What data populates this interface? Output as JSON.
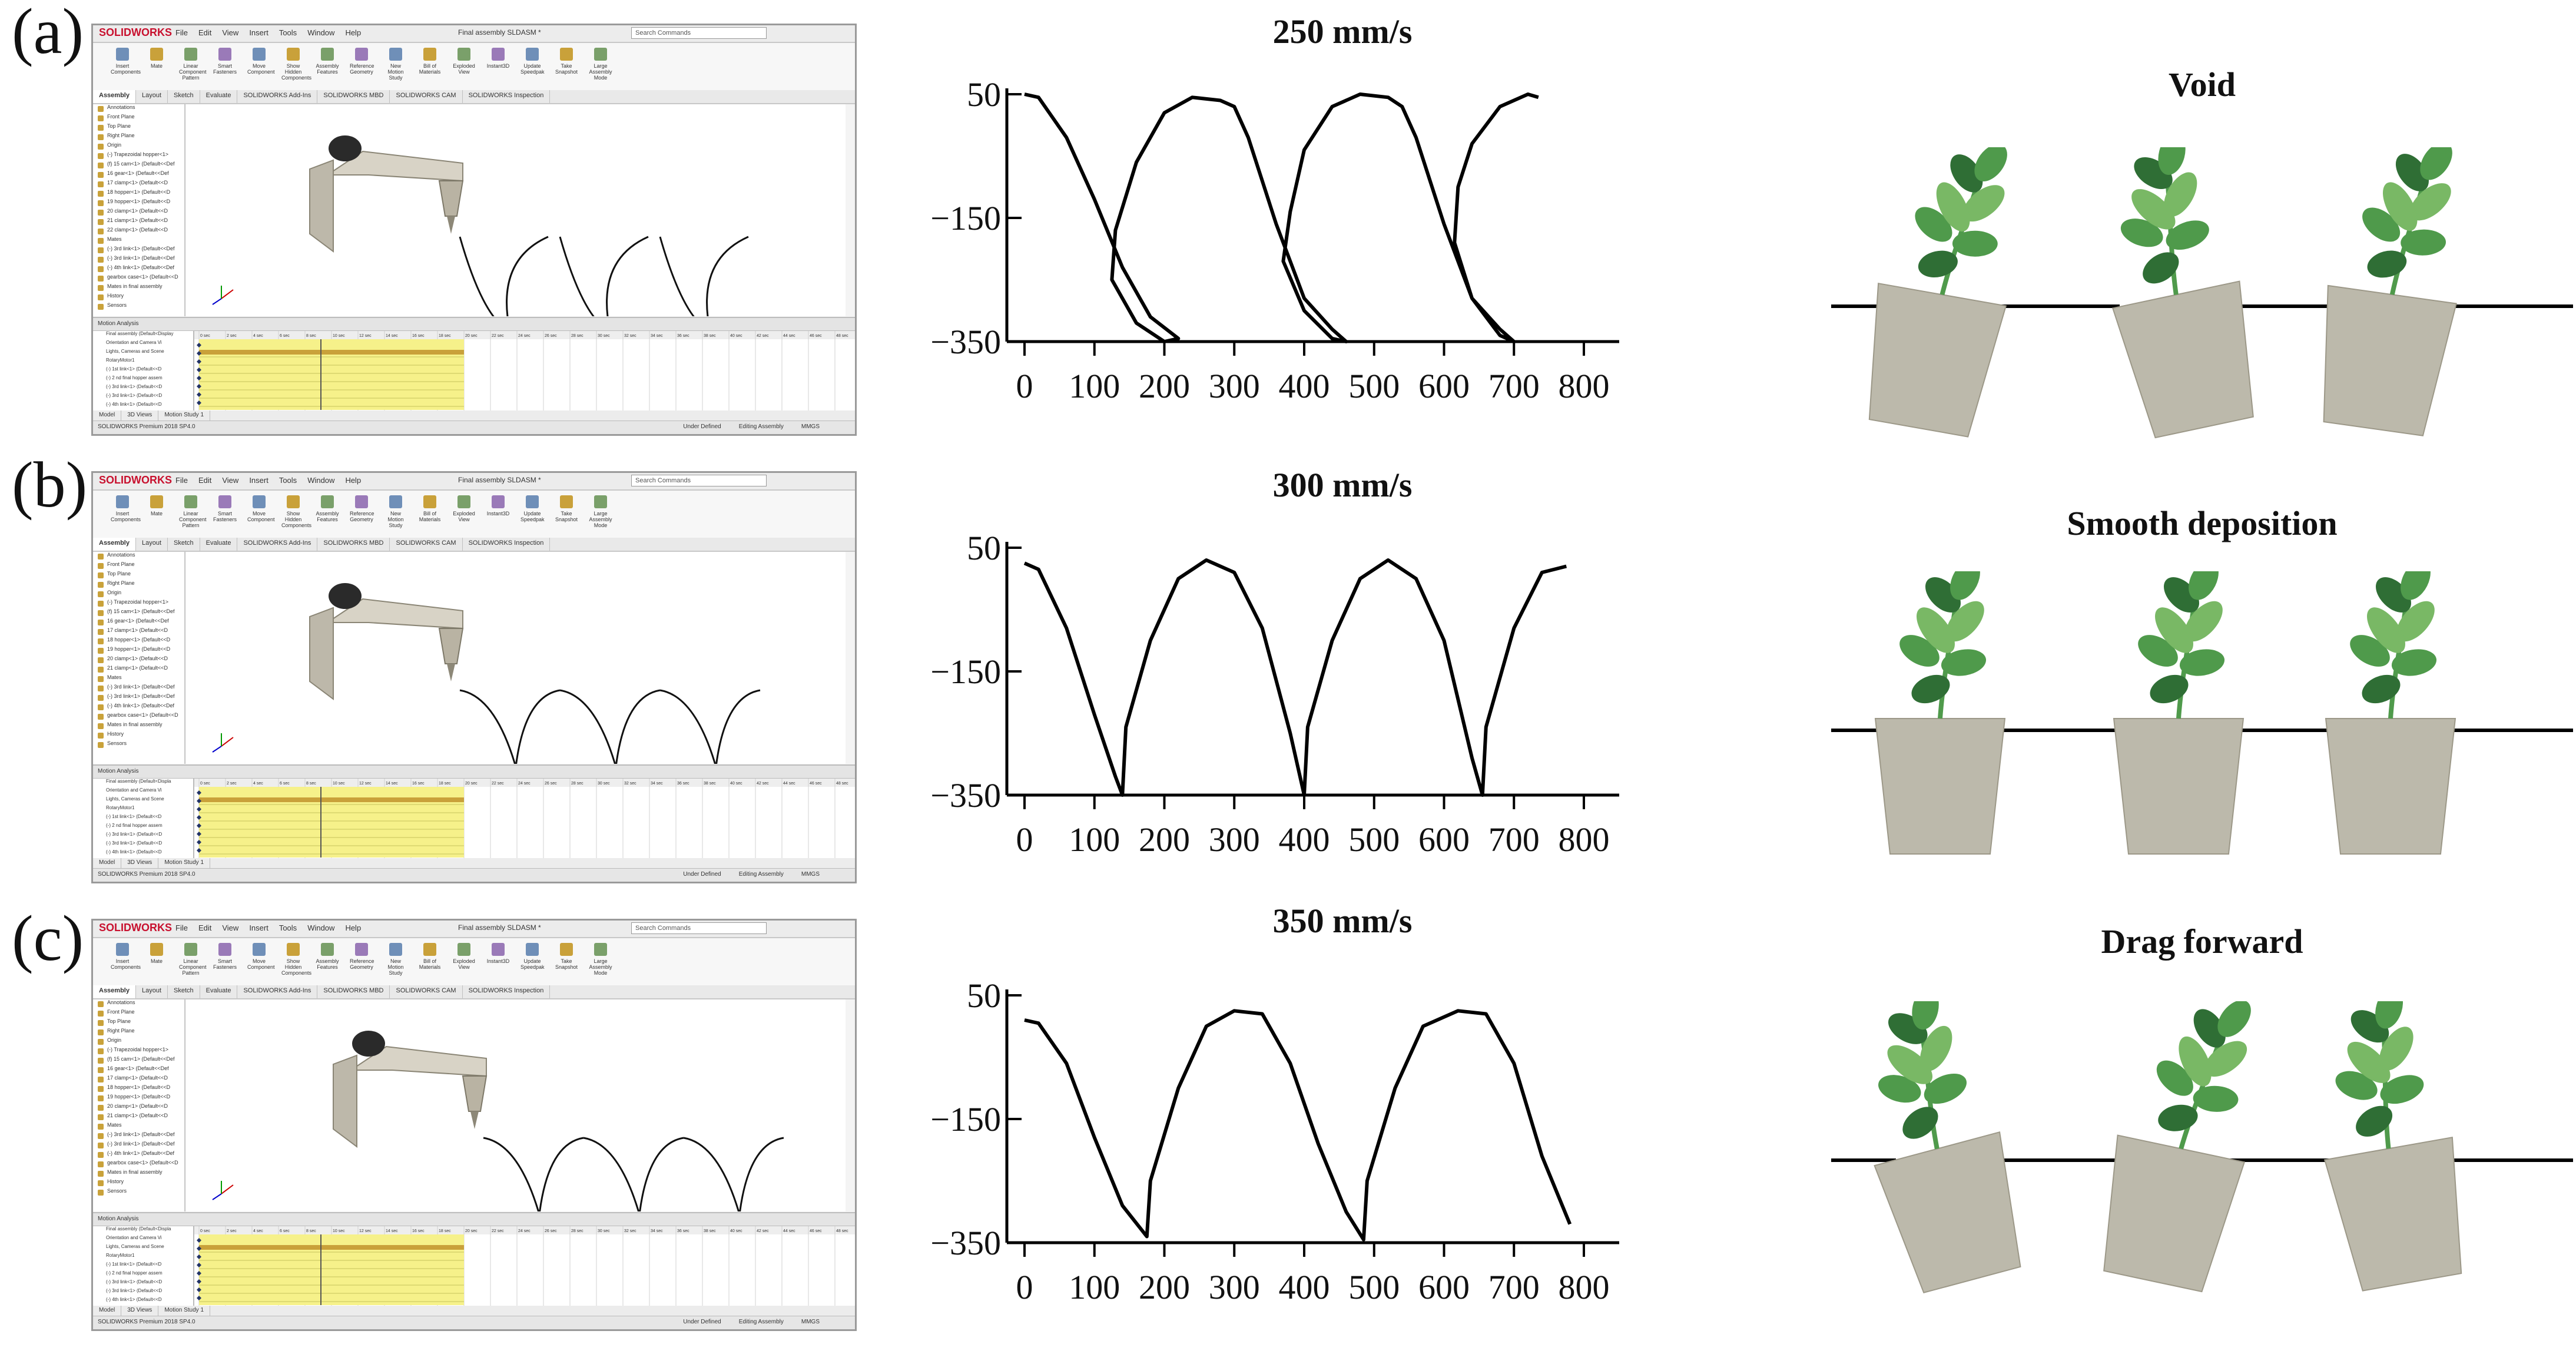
{
  "panels": [
    {
      "label": "(a)",
      "software": {
        "brand": "SOLIDWORKS",
        "menu": [
          "File",
          "Edit",
          "View",
          "Insert",
          "Tools",
          "Window",
          "Help"
        ],
        "doc_title": "Final assembly SLDASM *",
        "search_placeholder": "Search Commands",
        "ribbon": [
          "Insert Components",
          "Mate",
          "Linear Component Pattern",
          "Smart Fasteners",
          "Move Component",
          "Show Hidden Components",
          "Assembly Features",
          "Reference Geometry",
          "New Motion Study",
          "Bill of Materials",
          "Exploded View",
          "Instant3D",
          "Update Speedpak",
          "Take Snapshot",
          "Large Assembly Mode"
        ],
        "tabs": [
          "Assembly",
          "Layout",
          "Sketch",
          "Evaluate",
          "SOLIDWORKS Add-Ins",
          "SOLIDWORKS MBD",
          "SOLIDWORKS CAM",
          "SOLIDWORKS Inspection"
        ],
        "tree": [
          "Annotations",
          "Front Plane",
          "Top Plane",
          "Right Plane",
          "Origin",
          "(-) Trapezoidal hopper<1>",
          "(f) 15 cam<1> (Default<<Def",
          "16 gear<1> (Default<<Def",
          "17 clamp<1> (Default<<D",
          "18 hopper<1> (Default<<D",
          "19 hopper<1> (Default<<D",
          "20 clamp<1> (Default<<D",
          "21 clamp<1> (Default<<D",
          "22 clamp<1> (Default<<D",
          "Mates",
          "(-) 3rd link<1> (Default<<Def",
          "(-) 3rd link<1> (Default<<Def",
          "(-) 4th link<1> (Default<<Def",
          "gearbox case<1> (Default<<D",
          "Mates in final assembly",
          "History",
          "Sensors"
        ],
        "motion_head": "Motion Analysis",
        "motion_tree": [
          "Final assembly (Default<Display",
          "Orientation and Camera Vi",
          "Lights, Cameras and Scene",
          "RotaryMotor1",
          "(-) 1st link<1> (Default<<D",
          "(-) 2 nd final hopper assem",
          "(-) 3rd link<1> (Default<<D",
          "(-) 3rd link<1> (Default<<D",
          "(-) 4th link<1> (Default<<D"
        ],
        "bottom_tabs": [
          "Model",
          "3D Views",
          "Motion Study 1"
        ],
        "status_left": "SOLIDWORKS Premium 2018 SP4.0",
        "status_right": [
          "Under Defined",
          "Editing Assembly",
          "MMGS"
        ],
        "time_ticks": [
          "0 sec",
          "2 sec",
          "4 sec",
          "6 sec",
          "8 sec",
          "10 sec",
          "12 sec",
          "14 sec",
          "16 sec",
          "18 sec",
          "20 sec",
          "22 sec",
          "24 sec",
          "26 sec",
          "28 sec",
          "30 sec",
          "32 sec",
          "34 sec",
          "36 sec",
          "38 sec",
          "40 sec",
          "42 sec",
          "44 sec",
          "46 sec",
          "48 sec"
        ]
      },
      "chart_title": "250 mm/s",
      "plant_title": "Void"
    },
    {
      "label": "(b)",
      "software": {
        "brand": "SOLIDWORKS",
        "menu": [
          "File",
          "Edit",
          "View",
          "Insert",
          "Tools",
          "Window",
          "Help"
        ],
        "doc_title": "Final assembly SLDASM *",
        "search_placeholder": "Search Commands",
        "ribbon": [
          "Insert Components",
          "Mate",
          "Linear Component Pattern",
          "Smart Fasteners",
          "Move Component",
          "Show Hidden Components",
          "Assembly Features",
          "Reference Geometry",
          "New Motion Study",
          "Bill of Materials",
          "Exploded View",
          "Instant3D",
          "Update Speedpak",
          "Take Snapshot",
          "Large Assembly Mode"
        ],
        "tabs": [
          "Assembly",
          "Layout",
          "Sketch",
          "Evaluate",
          "SOLIDWORKS Add-Ins",
          "SOLIDWORKS MBD",
          "SOLIDWORKS CAM",
          "SOLIDWORKS Inspection"
        ],
        "tree": [
          "Annotations",
          "Front Plane",
          "Top Plane",
          "Right Plane",
          "Origin",
          "(-) Trapezoidal hopper<1>",
          "(f) 15 cam<1> (Default<<Def",
          "16 gear<1> (Default<<Def",
          "17 clamp<1> (Default<<D",
          "18 hopper<1> (Default<<D",
          "19 hopper<1> (Default<<D",
          "20 clamp<1> (Default<<D",
          "21 clamp<1> (Default<<D",
          "Mates",
          "(-) 3rd link<1> (Default<<Def",
          "(-) 3rd link<1> (Default<<Def",
          "(-) 4th link<1> (Default<<Def",
          "gearbox case<1> (Default<<D",
          "Mates in final assembly",
          "History",
          "Sensors"
        ],
        "motion_head": "Motion Analysis",
        "motion_tree": [
          "Final assembly (Default<Displa",
          "Orientation and Camera Vi",
          "Lights, Cameras and Scene",
          "RotaryMotor1",
          "(-) 1st link<1> (Default<<D",
          "(-) 2 nd final hopper assem",
          "(-) 3rd link<1> (Default<<D",
          "(-) 3rd link<1> (Default<<D",
          "(-) 4th link<1> (Default<<D"
        ],
        "bottom_tabs": [
          "Model",
          "3D Views",
          "Motion Study 1"
        ],
        "status_left": "SOLIDWORKS Premium 2018 SP4.0",
        "status_right": [
          "Under Defined",
          "Editing Assembly",
          "MMGS"
        ],
        "time_ticks": [
          "0 sec",
          "2 sec",
          "4 sec",
          "6 sec",
          "8 sec",
          "10 sec",
          "12 sec",
          "14 sec",
          "16 sec",
          "18 sec",
          "20 sec",
          "22 sec",
          "24 sec",
          "26 sec",
          "28 sec",
          "30 sec",
          "32 sec",
          "34 sec",
          "36 sec",
          "38 sec",
          "40 sec",
          "42 sec",
          "44 sec",
          "46 sec",
          "48 sec"
        ]
      },
      "chart_title": "300 mm/s",
      "plant_title": "Smooth deposition"
    },
    {
      "label": "(c)",
      "software": {
        "brand": "SOLIDWORKS",
        "menu": [
          "File",
          "Edit",
          "View",
          "Insert",
          "Tools",
          "Window",
          "Help"
        ],
        "doc_title": "Final assembly SLDASM *",
        "search_placeholder": "Search Commands",
        "ribbon": [
          "Insert Components",
          "Mate",
          "Linear Component Pattern",
          "Smart Fasteners",
          "Move Component",
          "Show Hidden Components",
          "Assembly Features",
          "Reference Geometry",
          "New Motion Study",
          "Bill of Materials",
          "Exploded View",
          "Instant3D",
          "Update Speedpak",
          "Take Snapshot",
          "Large Assembly Mode"
        ],
        "tabs": [
          "Assembly",
          "Layout",
          "Sketch",
          "Evaluate",
          "SOLIDWORKS Add-Ins",
          "SOLIDWORKS MBD",
          "SOLIDWORKS CAM",
          "SOLIDWORKS Inspection"
        ],
        "tree": [
          "Annotations",
          "Front Plane",
          "Top Plane",
          "Right Plane",
          "Origin",
          "(-) Trapezoidal hopper<1>",
          "(f) 15 cam<1> (Default<<Def",
          "16 gear<1> (Default<<Def",
          "17 clamp<1> (Default<<D",
          "18 hopper<1> (Default<<D",
          "19 hopper<1> (Default<<D",
          "20 clamp<1> (Default<<D",
          "21 clamp<1> (Default<<D",
          "Mates",
          "(-) 3rd link<1> (Default<<Def",
          "(-) 3rd link<1> (Default<<Def",
          "(-) 4th link<1> (Default<<Def",
          "gearbox case<1> (Default<<D",
          "Mates in final assembly",
          "History",
          "Sensors"
        ],
        "motion_head": "Motion Analysis",
        "motion_tree": [
          "Final assembly (Default<Displa",
          "Orientation and Camera Vi",
          "Lights, Cameras and Scene",
          "RotaryMotor1",
          "(-) 1st link<1> (Default<<D",
          "(-) 2 nd final hopper assem",
          "(-) 3rd link<1> (Default<<D",
          "(-) 3rd link<1> (Default<<D",
          "(-) 4th link<1> (Default<<D"
        ],
        "bottom_tabs": [
          "Model",
          "3D Views",
          "Motion Study 1"
        ],
        "status_left": "SOLIDWORKS Premium 2018 SP4.0",
        "status_right": [
          "Under Defined",
          "Editing Assembly",
          "MMGS"
        ],
        "time_ticks": [
          "0 sec",
          "2 sec",
          "4 sec",
          "6 sec",
          "8 sec",
          "10 sec",
          "12 sec",
          "14 sec",
          "16 sec",
          "18 sec",
          "20 sec",
          "22 sec",
          "24 sec",
          "26 sec",
          "28 sec",
          "30 sec",
          "32 sec",
          "34 sec",
          "36 sec",
          "38 sec",
          "40 sec",
          "42 sec",
          "44 sec",
          "46 sec",
          "48 sec"
        ]
      },
      "chart_title": "350 mm/s",
      "plant_title": "Drag forward"
    }
  ],
  "chart_data": [
    {
      "type": "line",
      "title": "250 mm/s",
      "xlabel": "",
      "ylabel": "",
      "xlim": [
        0,
        800
      ],
      "ylim": [
        -350,
        50
      ],
      "xticks": [
        0,
        100,
        200,
        300,
        400,
        500,
        600,
        700,
        800
      ],
      "yticks": [
        50,
        -150,
        -350
      ],
      "series": [
        {
          "x": [
            0,
            20,
            60,
            100,
            140,
            180,
            220,
            200,
            160,
            125,
            130,
            160,
            200,
            240,
            280,
            300,
            320,
            360,
            400,
            440,
            460,
            440,
            400,
            370,
            380,
            400,
            440,
            480,
            520,
            540,
            560,
            600,
            640,
            680,
            700,
            680,
            640,
            615,
            620,
            640,
            680,
            720,
            735
          ],
          "y": [
            50,
            45,
            -20,
            -120,
            -230,
            -310,
            -345,
            -350,
            -320,
            -250,
            -170,
            -60,
            20,
            45,
            40,
            30,
            -20,
            -160,
            -280,
            -330,
            -350,
            -345,
            -300,
            -220,
            -140,
            -40,
            30,
            50,
            45,
            30,
            -20,
            -160,
            -280,
            -330,
            -350,
            -340,
            -280,
            -190,
            -100,
            -30,
            30,
            50,
            45
          ]
        }
      ]
    },
    {
      "type": "line",
      "title": "300 mm/s",
      "xlabel": "",
      "ylabel": "",
      "xlim": [
        0,
        800
      ],
      "ylim": [
        -350,
        50
      ],
      "xticks": [
        0,
        100,
        200,
        300,
        400,
        500,
        600,
        700,
        800
      ],
      "yticks": [
        50,
        -150,
        -350
      ],
      "series": [
        {
          "x": [
            0,
            20,
            60,
            100,
            130,
            140,
            145,
            180,
            220,
            260,
            300,
            340,
            380,
            400,
            405,
            440,
            480,
            520,
            560,
            600,
            640,
            655,
            660,
            700,
            740,
            775
          ],
          "y": [
            25,
            15,
            -80,
            -220,
            -320,
            -350,
            -240,
            -100,
            0,
            30,
            10,
            -80,
            -250,
            -350,
            -240,
            -100,
            0,
            30,
            0,
            -100,
            -290,
            -350,
            -240,
            -80,
            10,
            20
          ]
        }
      ]
    },
    {
      "type": "line",
      "title": "350 mm/s",
      "xlabel": "",
      "ylabel": "",
      "xlim": [
        0,
        800
      ],
      "ylim": [
        -350,
        50
      ],
      "xticks": [
        0,
        100,
        200,
        300,
        400,
        500,
        600,
        700,
        800
      ],
      "yticks": [
        50,
        -150,
        -350
      ],
      "series": [
        {
          "x": [
            0,
            20,
            60,
            100,
            140,
            175,
            180,
            220,
            260,
            300,
            340,
            380,
            420,
            460,
            485,
            490,
            530,
            570,
            620,
            660,
            700,
            740,
            780
          ],
          "y": [
            10,
            5,
            -60,
            -180,
            -290,
            -340,
            -250,
            -100,
            0,
            25,
            20,
            -60,
            -190,
            -300,
            -345,
            -250,
            -100,
            0,
            25,
            20,
            -60,
            -210,
            -320
          ]
        }
      ]
    }
  ],
  "colors": {
    "pot": "#bcb9ab",
    "pot_stroke": "#9c9888",
    "leaf_dark": "#2f6e35",
    "leaf_mid": "#4f9a4b",
    "leaf_light": "#79b865",
    "ground": "#000000",
    "timeline_yellow": "#f6f18a",
    "timeline_bar": "#c9a13a",
    "sw_red": "#c8102e"
  }
}
